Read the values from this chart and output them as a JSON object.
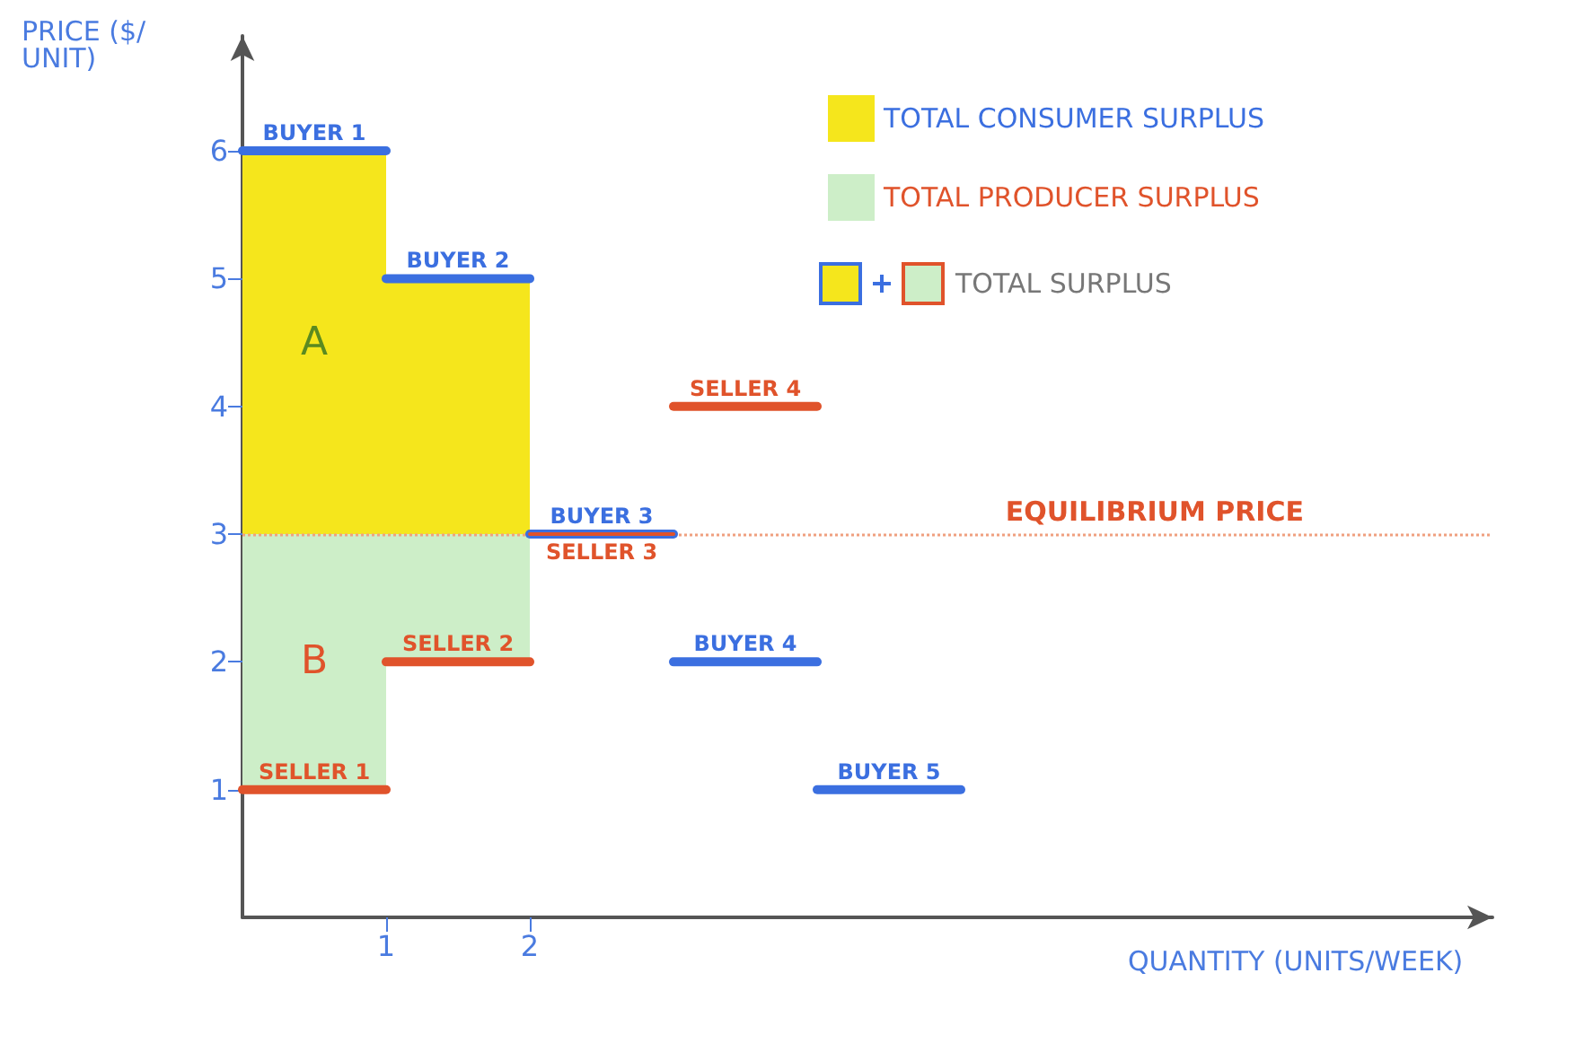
{
  "chart_data": {
    "type": "bar",
    "xlabel": "QUANTITY (UNITS/WEEK)",
    "ylabel": "PRICE ($/UNIT)",
    "x": [
      0.5,
      1.5
    ],
    "series": [
      {
        "name": "TOTAL CONSUMER SURPLUS",
        "color": "#f5e61c",
        "base": [
          3,
          3
        ],
        "values": [
          3,
          2
        ],
        "value_labels": [
          "A",
          null
        ]
      },
      {
        "name": "TOTAL PRODUCER SURPLUS",
        "color": "#cdeec8",
        "base": [
          1,
          2
        ],
        "values": [
          2,
          1
        ],
        "value_labels": [
          "B",
          null
        ]
      },
      {
        "type": "line",
        "color": "#3b6fe0",
        "x": [
          0,
          0.5,
          1
        ],
        "values": [
          6,
          6,
          6
        ],
        "value_labels": [
          null,
          "BUYER 1",
          null
        ]
      },
      {
        "type": "line",
        "color": "#3b6fe0",
        "x": [
          1,
          1.5,
          2
        ],
        "values": [
          5,
          5,
          5
        ],
        "value_labels": [
          null,
          "BUYER 2",
          null
        ]
      },
      {
        "type": "line",
        "color": "#3b6fe0",
        "x": [
          2,
          2.5,
          3
        ],
        "values": [
          3,
          3,
          3
        ],
        "value_labels": [
          null,
          "BUYER 3",
          null
        ]
      },
      {
        "type": "line",
        "color": "#3b6fe0",
        "x": [
          3,
          3.5,
          4
        ],
        "values": [
          2,
          2,
          2
        ],
        "value_labels": [
          null,
          "BUYER 4",
          null
        ]
      },
      {
        "type": "line",
        "color": "#3b6fe0",
        "x": [
          4,
          4.5,
          5
        ],
        "values": [
          1,
          1,
          1
        ],
        "value_labels": [
          null,
          "BUYER 5",
          null
        ]
      },
      {
        "type": "line",
        "color": "#e0532b",
        "x": [
          0,
          0.5,
          1
        ],
        "values": [
          1,
          1,
          1
        ],
        "value_labels": [
          null,
          "SELLER 1",
          null
        ]
      },
      {
        "type": "line",
        "color": "#e0532b",
        "x": [
          1,
          1.5,
          2
        ],
        "values": [
          2,
          2,
          2
        ],
        "value_labels": [
          null,
          "SELLER 2",
          null
        ]
      },
      {
        "type": "line",
        "color": "#e0532b",
        "x": [
          2,
          2.5,
          3
        ],
        "values": [
          3,
          3,
          3
        ],
        "value_labels": [
          null,
          "SELLER 3",
          null
        ]
      },
      {
        "type": "line",
        "color": "#e0532b",
        "x": [
          3,
          3.5,
          4
        ],
        "values": [
          4,
          4,
          4
        ],
        "value_labels": [
          null,
          "SELLER 4",
          null
        ]
      }
    ],
    "annotations": [
      "TOTAL SURPLUS"
    ],
    "ref_lines": [
      {
        "axis": "y",
        "value": 3,
        "label": "EQUILIBRIUM PRICE",
        "color": "#f0a080",
        "line_style": "dotted"
      }
    ],
    "xlim": [
      0,
      8.7
    ],
    "xticks": [
      1,
      2
    ],
    "ylim": [
      0,
      6.9
    ],
    "yticks": [
      1,
      2,
      3,
      4,
      5,
      6
    ],
    "legend": "top right",
    "grid": false,
    "marker": "none"
  }
}
